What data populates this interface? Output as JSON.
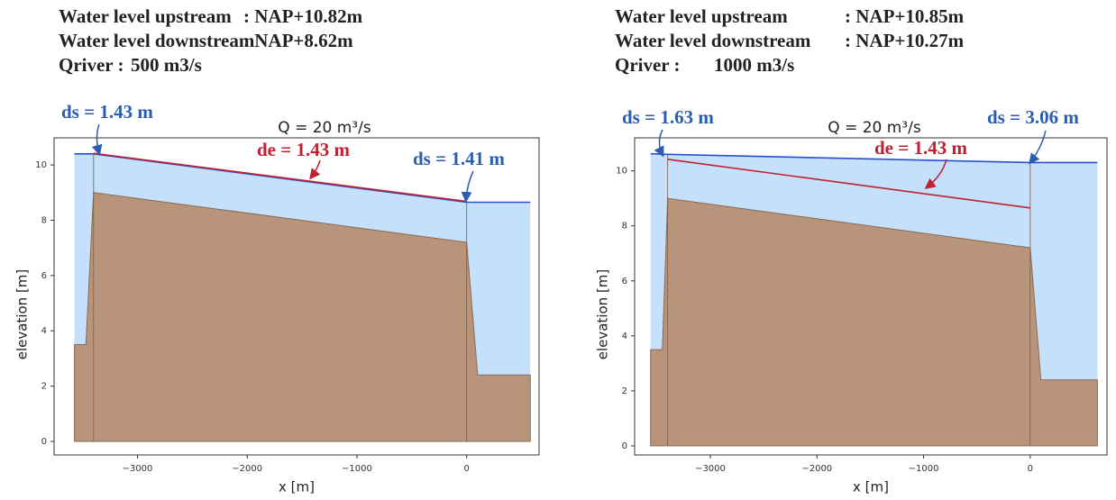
{
  "chart_data": [
    {
      "type": "area",
      "header": [
        {
          "label": "Water level upstream",
          "value": ": NAP+10.82m"
        },
        {
          "label": "Water level downstream",
          "value": ": NAP+8.62m"
        },
        {
          "label": "Qriver :",
          "value": "500 m3/s"
        }
      ],
      "title": "Q = 20 m³/s",
      "annotations": [
        {
          "text": "ds = 1.43 m",
          "color": "#2a5db0"
        },
        {
          "text": "de = 1.43 m",
          "color": "#c0202f"
        },
        {
          "text": "ds = 1.41 m",
          "color": "#2a5db0"
        }
      ],
      "xlabel": "x [m]",
      "ylabel": "elevation [m]",
      "xlim": [
        -3760,
        660
      ],
      "ylim": [
        -0.49,
        10.98
      ],
      "xticks": [
        {
          "value": -3000,
          "label": "−3000"
        },
        {
          "value": -2000,
          "label": "−2000"
        },
        {
          "value": -1000,
          "label": "−1000"
        },
        0
      ],
      "yticks": [
        0,
        2,
        4,
        6,
        8,
        10
      ],
      "series": [
        {
          "color": "#8a6a55",
          "fill": "#b8957a",
          "x": [
            -3575,
            -3470,
            -3400,
            0,
            100,
            580
          ],
          "values": [
            3.5,
            3.5,
            9.0,
            7.2,
            2.4,
            2.4
          ]
        },
        {
          "color": "#2a4fd0",
          "fill": "#c4e0fa",
          "x": [
            -3575,
            -3400,
            0,
            580
          ],
          "values": [
            10.4,
            10.4,
            8.65,
            8.65
          ]
        },
        {
          "color": "#c0202f",
          "x": [
            -3400,
            0
          ],
          "values": [
            10.42,
            8.68
          ]
        }
      ]
    },
    {
      "type": "area",
      "header": [
        {
          "label": "Water level upstream",
          "value": ": NAP+10.85m"
        },
        {
          "label": "Water level downstream",
          "value": ": NAP+10.27m"
        },
        {
          "label": "Qriver :",
          "value": "1000 m3/s"
        }
      ],
      "title": "Q = 20 m³/s",
      "annotations": [
        {
          "text": "ds = 1.63 m",
          "color": "#2a5db0"
        },
        {
          "text": "de = 1.43 m",
          "color": "#c0202f"
        },
        {
          "text": "ds = 3.06 m",
          "color": "#2a5db0"
        }
      ],
      "xlabel": "x [m]",
      "ylabel": "elevation [m]",
      "xlim": [
        -3710,
        720
      ],
      "ylim": [
        -0.33,
        11.2
      ],
      "xticks": [
        {
          "value": -3000,
          "label": "−3000"
        },
        {
          "value": -2000,
          "label": "−2000"
        },
        {
          "value": -1000,
          "label": "−1000"
        },
        0
      ],
      "yticks": [
        0,
        2,
        4,
        6,
        8,
        10
      ],
      "series": [
        {
          "color": "#8a6a55",
          "fill": "#b8957a",
          "x": [
            -3560,
            -3450,
            -3400,
            0,
            100,
            630
          ],
          "values": [
            3.5,
            3.5,
            9.0,
            7.2,
            2.4,
            2.4
          ]
        },
        {
          "color": "#2a4fd0",
          "fill": "#c4e0fa",
          "x": [
            -3560,
            -3400,
            0,
            630
          ],
          "values": [
            10.62,
            10.6,
            10.3,
            10.3
          ]
        },
        {
          "color": "#c0202f",
          "x": [
            -3400,
            0
          ],
          "values": [
            10.42,
            8.65
          ]
        }
      ]
    }
  ]
}
